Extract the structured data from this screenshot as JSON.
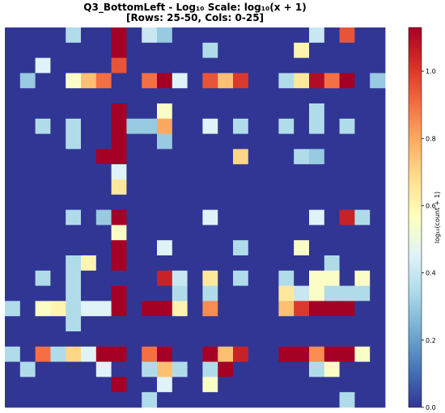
{
  "chart_data": {
    "type": "heatmap",
    "title_line1": "Q3_BottomLeft - Log₁₀ Scale: log₁₀(x + 1)",
    "title_line2": "[Rows: 25-50, Cols: 0-25]",
    "colorbar": {
      "label": "log₁₀(count + 1)",
      "ticks": [
        "0.0",
        "0.2",
        "0.4",
        "0.6",
        "0.8",
        "1.0"
      ],
      "range": [
        0,
        1.13
      ]
    },
    "n_rows": 25,
    "n_cols": 25,
    "values": [
      [
        0,
        0,
        0,
        0,
        0.35,
        0,
        0,
        1.13,
        0,
        0.4,
        0.3,
        0,
        0,
        0,
        0,
        0,
        0,
        0,
        0,
        0,
        0.4,
        0,
        0.95,
        0,
        0
      ],
      [
        0,
        0,
        0,
        0,
        0,
        0,
        0,
        1.13,
        0,
        0,
        0,
        0,
        0,
        0.35,
        0,
        0,
        0,
        0,
        0,
        0.6,
        0,
        0,
        0,
        0,
        0
      ],
      [
        0,
        0,
        0.45,
        0,
        0,
        0,
        0,
        0.95,
        0,
        0,
        0,
        0,
        0,
        0,
        0,
        0,
        0,
        0,
        0,
        0,
        0,
        0,
        0,
        0,
        0
      ],
      [
        0,
        0.3,
        0,
        0,
        0.55,
        0.75,
        0.9,
        0,
        0,
        0.9,
        1.13,
        0.45,
        0,
        0.95,
        0.75,
        1.0,
        0,
        0,
        0.35,
        0.65,
        1.1,
        0.9,
        1.13,
        0,
        0.3
      ],
      [
        0,
        0,
        0,
        0,
        0,
        0,
        0,
        0,
        0,
        0,
        0,
        0,
        0,
        0,
        0,
        0,
        0,
        0,
        0,
        0,
        0,
        0,
        0,
        0,
        0
      ],
      [
        0,
        0,
        0,
        0,
        0,
        0,
        0,
        1.13,
        0,
        0,
        0.55,
        0,
        0,
        0,
        0,
        0,
        0,
        0,
        0,
        0,
        0.35,
        0,
        0,
        0,
        0
      ],
      [
        0,
        0,
        0.35,
        0,
        0.35,
        0,
        0,
        1.13,
        0.3,
        0.3,
        0.8,
        0,
        0,
        0.45,
        0,
        0.35,
        0,
        0,
        0.35,
        0,
        0.35,
        0,
        0.35,
        0,
        0
      ],
      [
        0,
        0,
        0,
        0,
        0.35,
        0,
        0,
        1.13,
        0,
        0,
        0.3,
        0,
        0,
        0,
        0,
        0,
        0,
        0,
        0,
        0,
        0,
        0,
        0,
        0,
        0
      ],
      [
        0,
        0,
        0,
        0,
        0,
        0,
        1.13,
        1.13,
        0,
        0,
        0,
        0,
        0,
        0,
        0,
        0.7,
        0,
        0,
        0,
        0.35,
        0.3,
        0,
        0,
        0,
        0
      ],
      [
        0,
        0,
        0,
        0,
        0,
        0,
        0,
        0.45,
        0,
        0,
        0,
        0,
        0,
        0,
        0,
        0,
        0,
        0,
        0,
        0,
        0,
        0,
        0,
        0,
        0
      ],
      [
        0,
        0,
        0,
        0,
        0,
        0,
        0,
        0.65,
        0,
        0,
        0,
        0,
        0,
        0,
        0,
        0,
        0,
        0,
        0,
        0,
        0,
        0,
        0,
        0,
        0
      ],
      [
        0,
        0,
        0,
        0,
        0,
        0,
        0,
        0,
        0,
        0,
        0,
        0,
        0,
        0,
        0,
        0,
        0,
        0,
        0,
        0,
        0,
        0,
        0,
        0,
        0
      ],
      [
        0,
        0,
        0,
        0,
        0.35,
        0,
        0.3,
        1.13,
        0,
        0,
        0,
        0,
        0,
        0.45,
        0,
        0,
        0,
        0,
        0,
        0,
        0.45,
        0,
        1.05,
        0.35,
        0
      ],
      [
        0,
        0,
        0,
        0,
        0,
        0,
        0,
        0.55,
        0,
        0,
        0,
        0,
        0,
        0,
        0,
        0,
        0,
        0,
        0,
        0,
        0,
        0,
        0,
        0,
        0
      ],
      [
        0,
        0,
        0,
        0,
        0,
        0,
        0,
        1.13,
        0,
        0,
        0.45,
        0,
        0,
        0,
        0,
        0.35,
        0,
        0,
        0,
        0.55,
        0,
        0,
        0,
        0,
        0
      ],
      [
        0,
        0,
        0,
        0,
        0.35,
        0.6,
        0,
        1.13,
        0,
        0,
        0,
        0,
        0,
        0,
        0,
        0,
        0,
        0,
        0,
        0,
        0,
        0.35,
        0,
        0,
        0
      ],
      [
        0,
        0,
        0.35,
        0,
        0.35,
        0,
        0,
        0,
        0,
        0,
        1.05,
        0.4,
        0,
        0.65,
        0,
        0.35,
        0,
        0,
        0.35,
        0,
        0.55,
        0.55,
        0,
        0.55,
        0
      ],
      [
        0,
        0,
        0,
        0,
        0.35,
        0,
        0,
        1.13,
        0,
        0,
        0,
        0.35,
        0,
        0.35,
        0,
        0,
        0,
        0,
        0.65,
        0.4,
        0.55,
        0.35,
        0.35,
        0.35,
        0
      ],
      [
        0.35,
        0,
        0.55,
        0.6,
        0.35,
        0.45,
        0.45,
        1.13,
        0,
        1.13,
        1.13,
        0.6,
        0,
        0.85,
        0,
        0,
        0,
        0,
        0.75,
        1.0,
        1.13,
        1.13,
        1.13,
        0,
        0
      ],
      [
        0,
        0,
        0,
        0,
        0.35,
        0,
        0,
        0,
        0,
        0,
        0,
        0,
        0,
        0,
        0,
        0,
        0,
        0,
        0,
        0,
        0,
        0,
        0,
        0,
        0
      ],
      [
        0,
        0,
        0,
        0,
        0,
        0,
        0,
        0,
        0,
        0,
        0,
        0,
        0,
        0,
        0,
        0,
        0,
        0,
        0,
        0,
        0,
        0,
        0,
        0,
        0
      ],
      [
        0.35,
        0,
        0.9,
        0.35,
        0.7,
        0.45,
        1.13,
        1.13,
        0,
        0.9,
        1.13,
        0,
        0,
        1.13,
        0.75,
        1.05,
        0,
        0,
        1.13,
        1.13,
        0.85,
        1.13,
        1.13,
        0.55,
        0
      ],
      [
        0,
        0.35,
        0,
        0,
        0,
        0,
        0.45,
        0,
        0,
        0.35,
        0.75,
        0.35,
        0,
        0.35,
        1.13,
        0,
        0,
        0,
        0,
        0,
        0.35,
        0.55,
        0,
        0,
        0
      ],
      [
        0,
        0,
        0,
        0,
        0,
        0,
        0,
        1.13,
        0,
        0,
        0.45,
        0,
        0,
        0.55,
        0,
        0,
        0,
        0,
        0,
        0,
        0,
        0,
        0,
        0,
        0
      ],
      [
        0,
        0,
        0,
        0,
        0,
        0,
        0,
        0,
        0,
        0.35,
        0,
        0,
        0,
        0,
        0,
        0,
        0,
        0,
        0,
        0,
        0,
        0,
        0.35,
        0,
        0
      ]
    ]
  }
}
